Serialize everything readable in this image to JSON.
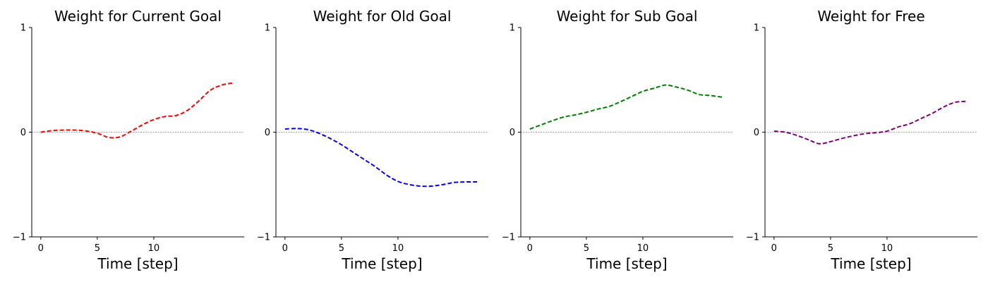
{
  "chart_data": [
    {
      "type": "line",
      "title": "Weight for Current Goal",
      "xlabel": "Time [step]",
      "ylabel": "",
      "xticks": [
        0,
        5,
        10
      ],
      "yticks": [
        -1,
        0,
        1
      ],
      "xlim": [
        -0.8,
        18
      ],
      "ylim": [
        -1,
        1
      ],
      "grid": false,
      "series": [
        {
          "color": "#ff0000",
          "x": [
            0,
            1,
            2,
            3,
            4,
            5,
            6,
            7,
            8,
            9,
            10,
            11,
            12,
            13,
            14,
            15,
            16,
            17
          ],
          "y": [
            0.0,
            0.015,
            0.02,
            0.02,
            0.012,
            -0.01,
            -0.05,
            -0.045,
            0.01,
            0.07,
            0.12,
            0.15,
            0.16,
            0.21,
            0.3,
            0.4,
            0.45,
            0.47
          ]
        }
      ]
    },
    {
      "type": "line",
      "title": "Weight for Old Goal",
      "xlabel": "Time [step]",
      "ylabel": "",
      "xticks": [
        0,
        5,
        10
      ],
      "yticks": [
        -1,
        0,
        1
      ],
      "xlim": [
        -0.8,
        18
      ],
      "ylim": [
        -1,
        1
      ],
      "grid": false,
      "series": [
        {
          "color": "#0000ff",
          "x": [
            0,
            1,
            2,
            3,
            4,
            5,
            6,
            7,
            8,
            9,
            10,
            11,
            12,
            13,
            14,
            15,
            16,
            17
          ],
          "y": [
            0.03,
            0.035,
            0.025,
            -0.01,
            -0.06,
            -0.12,
            -0.19,
            -0.26,
            -0.33,
            -0.41,
            -0.47,
            -0.5,
            -0.515,
            -0.515,
            -0.5,
            -0.48,
            -0.475,
            -0.475
          ]
        }
      ]
    },
    {
      "type": "line",
      "title": "Weight for Sub Goal",
      "xlabel": "Time [step]",
      "ylabel": "",
      "xticks": [
        0,
        5,
        10
      ],
      "yticks": [
        -1,
        0,
        1
      ],
      "xlim": [
        -0.8,
        18
      ],
      "ylim": [
        -1,
        1
      ],
      "grid": false,
      "series": [
        {
          "color": "#008000",
          "x": [
            0,
            1,
            2,
            3,
            4,
            5,
            6,
            7,
            8,
            9,
            10,
            11,
            12,
            13,
            14,
            15,
            16,
            17
          ],
          "y": [
            0.03,
            0.07,
            0.11,
            0.145,
            0.165,
            0.19,
            0.22,
            0.245,
            0.29,
            0.34,
            0.39,
            0.42,
            0.45,
            0.43,
            0.4,
            0.36,
            0.35,
            0.335
          ]
        }
      ]
    },
    {
      "type": "line",
      "title": "Weight for Free",
      "xlabel": "Time [step]",
      "ylabel": "",
      "xticks": [
        0,
        5,
        10
      ],
      "yticks": [
        -1,
        0,
        1
      ],
      "xlim": [
        -0.8,
        18
      ],
      "ylim": [
        -1,
        1
      ],
      "grid": false,
      "series": [
        {
          "color": "#800080",
          "x": [
            0,
            1,
            2,
            3,
            4,
            5,
            6,
            7,
            8,
            9,
            10,
            11,
            12,
            13,
            14,
            15,
            16,
            17
          ],
          "y": [
            0.01,
            0.0,
            -0.03,
            -0.07,
            -0.11,
            -0.09,
            -0.06,
            -0.035,
            -0.015,
            -0.005,
            0.01,
            0.05,
            0.08,
            0.13,
            0.18,
            0.24,
            0.285,
            0.295
          ]
        }
      ]
    }
  ]
}
